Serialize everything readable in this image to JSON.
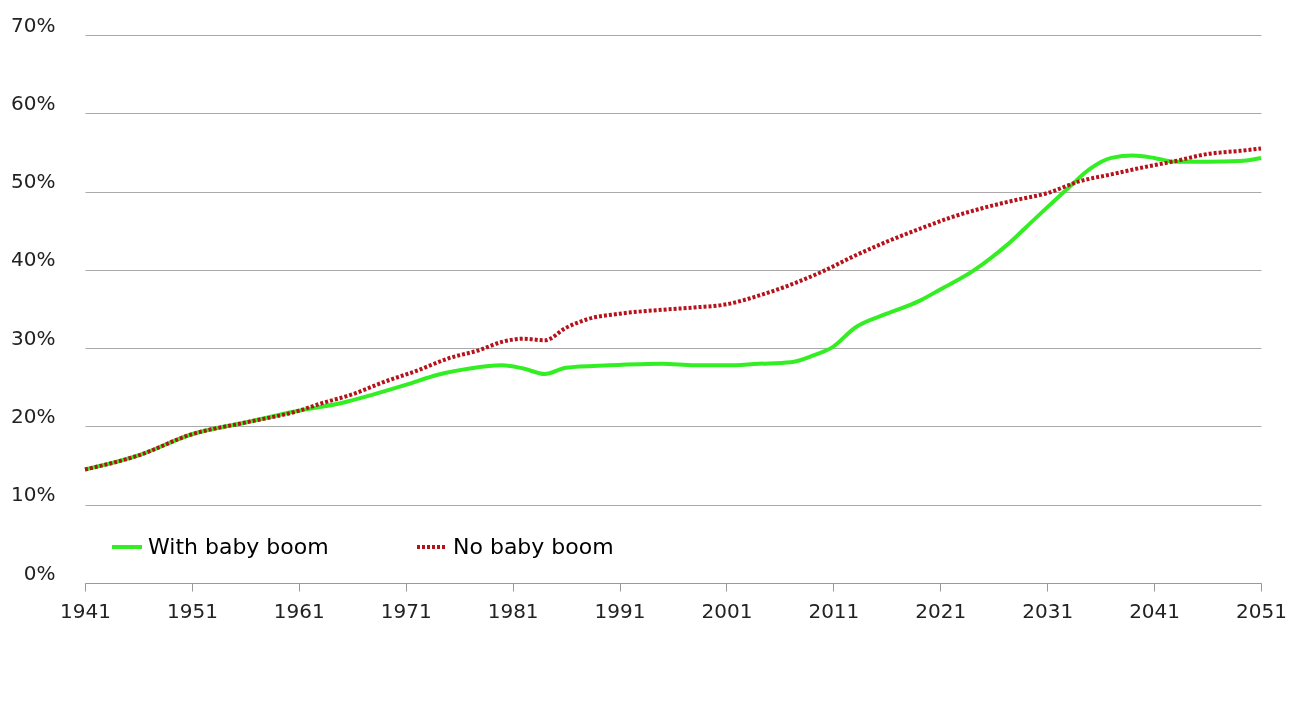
{
  "chart_data": {
    "type": "line",
    "xlim": [
      1941,
      2051
    ],
    "xticks": [
      1941,
      1951,
      1961,
      1971,
      1981,
      1991,
      2001,
      2011,
      2021,
      2031,
      2041,
      2051
    ],
    "ylim": [
      0,
      70
    ],
    "yticks": [
      {
        "value": 0,
        "label": "0%"
      },
      {
        "value": 10,
        "label": "10%"
      },
      {
        "value": 20,
        "label": "20%"
      },
      {
        "value": 30,
        "label": "30%"
      },
      {
        "value": 40,
        "label": "40%"
      },
      {
        "value": 50,
        "label": "50%"
      },
      {
        "value": 60,
        "label": "60%"
      },
      {
        "value": 70,
        "label": "70%"
      }
    ],
    "grid": "y",
    "legend": "bottom left",
    "marker": "none",
    "series": [
      {
        "name": "With baby boom",
        "color": "#33ee22",
        "line_style": "solid",
        "x": [
          1941,
          1946,
          1951,
          1956,
          1961,
          1965,
          1968,
          1971,
          1974,
          1977,
          1980,
          1982,
          1984,
          1986,
          1990,
          1995,
          1998,
          2001,
          2004,
          2007,
          2009,
          2011,
          2013,
          2016,
          2019,
          2021,
          2024,
          2027,
          2030,
          2033,
          2035,
          2037,
          2039,
          2041,
          2043,
          2046,
          2049,
          2051
        ],
        "values": [
          14.5,
          16.3,
          19.0,
          20.5,
          22.0,
          23.0,
          24.1,
          25.3,
          26.6,
          27.4,
          27.8,
          27.4,
          26.7,
          27.5,
          27.8,
          28.0,
          27.8,
          27.8,
          28.0,
          28.2,
          29.0,
          30.2,
          32.6,
          34.4,
          36.0,
          37.5,
          39.8,
          42.9,
          46.7,
          50.5,
          52.9,
          54.3,
          54.6,
          54.3,
          53.8,
          53.8,
          53.9,
          54.3
        ]
      },
      {
        "name": "No baby boom",
        "color": "#b5121b",
        "line_style": "dotted",
        "x": [
          1941,
          1946,
          1951,
          1956,
          1961,
          1963,
          1966,
          1969,
          1972,
          1975,
          1978,
          1980,
          1982,
          1984,
          1986,
          1988,
          1991,
          1995,
          1998,
          2001,
          2004,
          2007,
          2010,
          2013,
          2016,
          2019,
          2022,
          2025,
          2028,
          2031,
          2034,
          2037,
          2040,
          2043,
          2046,
          2049,
          2051
        ],
        "values": [
          14.5,
          16.3,
          19.0,
          20.5,
          22.0,
          22.9,
          24.1,
          25.7,
          27.1,
          28.7,
          29.8,
          30.8,
          31.2,
          31.0,
          32.6,
          33.7,
          34.4,
          34.9,
          35.2,
          35.6,
          36.7,
          38.1,
          39.8,
          41.8,
          43.6,
          45.2,
          46.7,
          47.9,
          48.9,
          49.8,
          51.3,
          52.2,
          53.1,
          53.9,
          54.8,
          55.2,
          55.5
        ]
      }
    ]
  }
}
